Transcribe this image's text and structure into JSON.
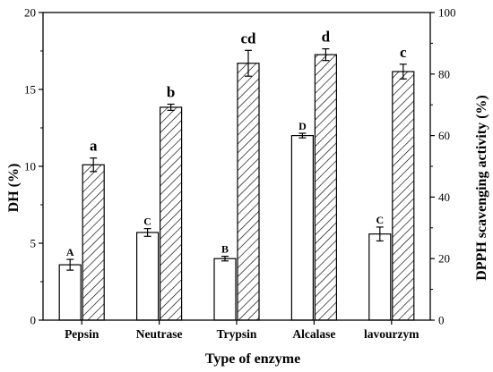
{
  "chart_data": {
    "type": "bar",
    "xlabel": "Type of enzyme",
    "ylabel_left": "DH (%)",
    "ylabel_right": "DPPH scavenging activity (%)",
    "categories": [
      "Pepsin",
      "Neutrase",
      "Trypsin",
      "Alcalase",
      "lavourzym"
    ],
    "ylim_left": [
      0,
      20
    ],
    "ylim_right": [
      0,
      100
    ],
    "yticks_left": [
      0,
      5,
      10,
      15,
      20
    ],
    "yticks_right": [
      0,
      20,
      40,
      60,
      80,
      100
    ],
    "grid": false,
    "legend": "none",
    "series": [
      {
        "axis": "left",
        "style": "open",
        "values": [
          3.6,
          5.7,
          4.0,
          12.0,
          5.6
        ],
        "errors": [
          0.35,
          0.25,
          0.15,
          0.15,
          0.45
        ],
        "significance": [
          "A",
          "C",
          "B",
          "D",
          "C"
        ]
      },
      {
        "axis": "right",
        "style": "hatched",
        "values": [
          50.5,
          69.2,
          83.5,
          86.3,
          80.8
        ],
        "errors": [
          2.2,
          1.0,
          4.2,
          1.9,
          2.4
        ],
        "significance": [
          "a",
          "b",
          "cd",
          "d",
          "c"
        ]
      }
    ]
  }
}
